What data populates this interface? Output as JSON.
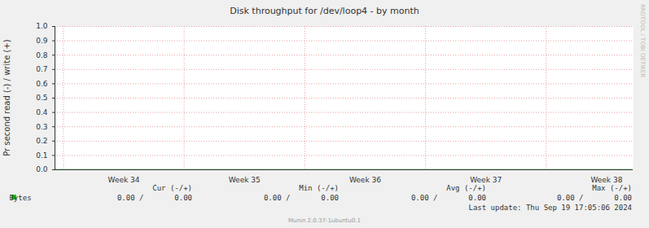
{
  "chart_data": {
    "type": "line",
    "title": "Disk throughput for /dev/loop4 - by month",
    "y_label": "Pr second read (-) / write (+)",
    "x": [
      33.93,
      34,
      35,
      36,
      37,
      38,
      38.72
    ],
    "series": [
      {
        "name": "Bytes",
        "color": "#00cc00",
        "values": [
          0,
          0,
          0,
          0,
          0,
          0,
          0
        ]
      }
    ],
    "xlim": [
      33.93,
      38.72
    ],
    "xticks": [
      {
        "value": 34,
        "label": "Week 34"
      },
      {
        "value": 35,
        "label": "Week 35"
      },
      {
        "value": 36,
        "label": "Week 36"
      },
      {
        "value": 37,
        "label": "Week 37"
      },
      {
        "value": 38,
        "label": "Week 38"
      }
    ],
    "ylim": [
      0,
      1
    ],
    "yticks": [
      {
        "value": 0,
        "label": "0.0"
      },
      0.1,
      0.2,
      0.3,
      0.4,
      0.5,
      0.6,
      0.7,
      0.8,
      0.9,
      {
        "value": 1,
        "label": "1.0"
      }
    ],
    "grid": true,
    "legend_table": {
      "columns": [
        "Cur (-/+)",
        "Min (-/+)",
        "Avg (-/+)",
        "Max (-/+)"
      ],
      "rows": [
        {
          "name": "Bytes",
          "cells": [
            "0.00 /       0.00",
            "0.00 /       0.00",
            "0.00 /       0.00",
            "0.00 /       0.00"
          ]
        }
      ]
    },
    "last_update": "Last update: Thu Sep 19 17:05:06 2024",
    "footer": "Munin 2.0.37-1ubuntu0.1",
    "watermark": "RRDTOOL / TOBI OETIKER"
  }
}
